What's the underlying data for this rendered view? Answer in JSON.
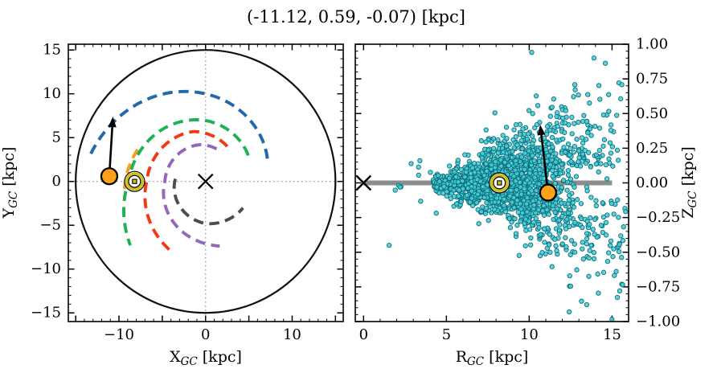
{
  "title": "(-11.12, 0.59, -0.07) [kpc]",
  "colors": {
    "spine": "#000000",
    "crosshair": "#9e9e9e",
    "boundary_circle": "#111111",
    "star": "#ffa019",
    "sun_ring": "#ccc021",
    "midplane_bar": "#8c8c8c",
    "scatter_fill": "#49cdd6",
    "scatter_edge": "#0c6e7a",
    "arrow": "#000000"
  },
  "left_panel": {
    "xlabel": {
      "base": "X",
      "sub": "GC",
      "unit": " [kpc]"
    },
    "ylabel": {
      "base": "Y",
      "sub": "GC",
      "unit": " [kpc]"
    }
  },
  "right_panel": {
    "xlabel": {
      "base": "R",
      "sub": "GC",
      "unit": " [kpc]"
    },
    "ylabel": {
      "base": "Z",
      "sub": "GC",
      "unit": " [kpc]"
    }
  },
  "chart_data": [
    {
      "type": "line",
      "name": "galaxy-face-on-view-XY",
      "xlabel": "X_GC [kpc]",
      "ylabel": "Y_GC [kpc]",
      "xlim": [
        -15.85,
        15.9
      ],
      "ylim": [
        -15.99,
        15.66
      ],
      "grid": false,
      "xticks": {
        "major": [
          -15,
          -10,
          -5,
          0,
          5,
          10,
          15
        ],
        "minor_step": 1,
        "labels": [
          {
            "v": -10,
            "l": "−10"
          },
          {
            "v": 0,
            "l": "0"
          },
          {
            "v": 10,
            "l": "10"
          }
        ]
      },
      "yticks": {
        "side": "left",
        "major": [
          -15,
          -10,
          -5,
          0,
          5,
          10,
          15
        ],
        "minor_step": 1,
        "labels": [
          {
            "v": 15,
            "l": "15"
          },
          {
            "v": 10,
            "l": "10"
          },
          {
            "v": 5,
            "l": "5"
          },
          {
            "v": 0,
            "l": "0"
          },
          {
            "v": -5,
            "l": "−5"
          },
          {
            "v": -10,
            "l": "−10"
          },
          {
            "v": -15,
            "l": "−15"
          }
        ]
      },
      "boundary_circle_radius": 15,
      "crosshair_dotted": true,
      "spiral_arms": [
        {
          "name": "outer-arm-blue",
          "color": "#2268ae",
          "controls_theta_deg_R_kpc": [
            [
              20,
              7.6
            ],
            [
              90,
              10.0
            ],
            [
              168,
              13.7
            ]
          ]
        },
        {
          "name": "local-arm-orange",
          "color": "#f5a11c",
          "controls_theta_deg_R_kpc": [
            [
              155,
              8.65
            ],
            [
              191,
              9.55
            ]
          ]
        },
        {
          "name": "arm-green",
          "color": "#1fb155",
          "controls_theta_deg_R_kpc": [
            [
              31,
              5.75
            ],
            [
              90,
              6.95
            ],
            [
              180,
              8.9
            ],
            [
              220,
              11.35
            ]
          ]
        },
        {
          "name": "arm-red",
          "color": "#f13a13",
          "controls_theta_deg_R_kpc": [
            [
              58,
              4.72
            ],
            [
              104,
              5.87
            ],
            [
              180,
              6.8
            ],
            [
              246,
              9.0
            ]
          ]
        },
        {
          "name": "arm-purple",
          "color": "#9467bd",
          "controls_theta_deg_R_kpc": [
            [
              71,
              3.92
            ],
            [
              97,
              4.23
            ],
            [
              180,
              4.7
            ],
            [
              270,
              7.1
            ],
            [
              283,
              7.57
            ]
          ]
        },
        {
          "name": "arm-gray",
          "color": "#4d4d4d",
          "controls_theta_deg_R_kpc": [
            [
              175,
              3.5
            ],
            [
              270,
              4.8
            ],
            [
              325,
              5.28
            ]
          ]
        }
      ],
      "galactic_center_x_marker": [
        0,
        0
      ],
      "sun_marker": [
        -8.2,
        0
      ],
      "star_marker": [
        -11.12,
        0.59
      ],
      "arrow": {
        "from": [
          -11.12,
          0.59
        ],
        "to": [
          -10.7,
          7.4
        ]
      }
    },
    {
      "type": "scatter",
      "name": "side-on-view-RZ",
      "xlabel": "R_GC [kpc]",
      "ylabel": "Z_GC [kpc]",
      "xlim": [
        -0.5,
        16.0
      ],
      "ylim": [
        -1.0,
        1.0
      ],
      "grid": false,
      "xticks": {
        "major": [
          0,
          5,
          10,
          15
        ],
        "minor_step": 1,
        "labels": [
          {
            "v": 0,
            "l": "0"
          },
          {
            "v": 5,
            "l": "5"
          },
          {
            "v": 10,
            "l": "10"
          },
          {
            "v": 15,
            "l": "15"
          }
        ]
      },
      "yticks": {
        "side": "right",
        "major": [
          -1,
          -0.75,
          -0.5,
          -0.25,
          0,
          0.25,
          0.5,
          0.75,
          1
        ],
        "minor_step": 0.05,
        "labels": [
          {
            "v": 1,
            "l": "1.00"
          },
          {
            "v": 0.75,
            "l": "0.75"
          },
          {
            "v": 0.5,
            "l": "0.50"
          },
          {
            "v": 0.25,
            "l": "0.25"
          },
          {
            "v": 0,
            "l": "0.00"
          },
          {
            "v": -0.25,
            "l": "−0.25"
          },
          {
            "v": -0.5,
            "l": "−0.50"
          },
          {
            "v": -0.75,
            "l": "−0.75"
          },
          {
            "v": -1,
            "l": "−1.00"
          }
        ]
      },
      "midplane_bar": {
        "from": 0,
        "to": 15,
        "z": 0
      },
      "galactic_center_x_marker": [
        0,
        0
      ],
      "sun_marker": [
        8.2,
        0
      ],
      "star_marker": [
        11.14,
        -0.07
      ],
      "arrow": {
        "from": [
          11.14,
          -0.07
        ],
        "to": [
          10.66,
          0.42
        ]
      },
      "scatter": {
        "seed": 11,
        "marker_radius_px": 2.7,
        "core": {
          "n": 1380,
          "R_mean": 8.4,
          "R_sigma": 2.1,
          "R_min": 4.2,
          "R_max": 15.7,
          "z_sigma_base": 0.03,
          "z_sigma_slope": 0.02
        },
        "fan_up": {
          "n": 240,
          "R_min": 7.0,
          "R_span": 8.6,
          "z_offset": 0.12,
          "z_scale": 0.3
        },
        "fan_down": {
          "n": 200,
          "R_min": 9.0,
          "R_span": 6.9,
          "z_offset": -0.12,
          "z_scale": 0.34
        },
        "sparse_left": {
          "n": 9,
          "R_min": 1.5,
          "R_span": 3.0,
          "z_sigma": 0.16
        },
        "outliers": [
          [
            1.55,
            -0.45
          ],
          [
            3.4,
            0.16
          ],
          [
            2.2,
            -0.03
          ]
        ]
      }
    }
  ]
}
